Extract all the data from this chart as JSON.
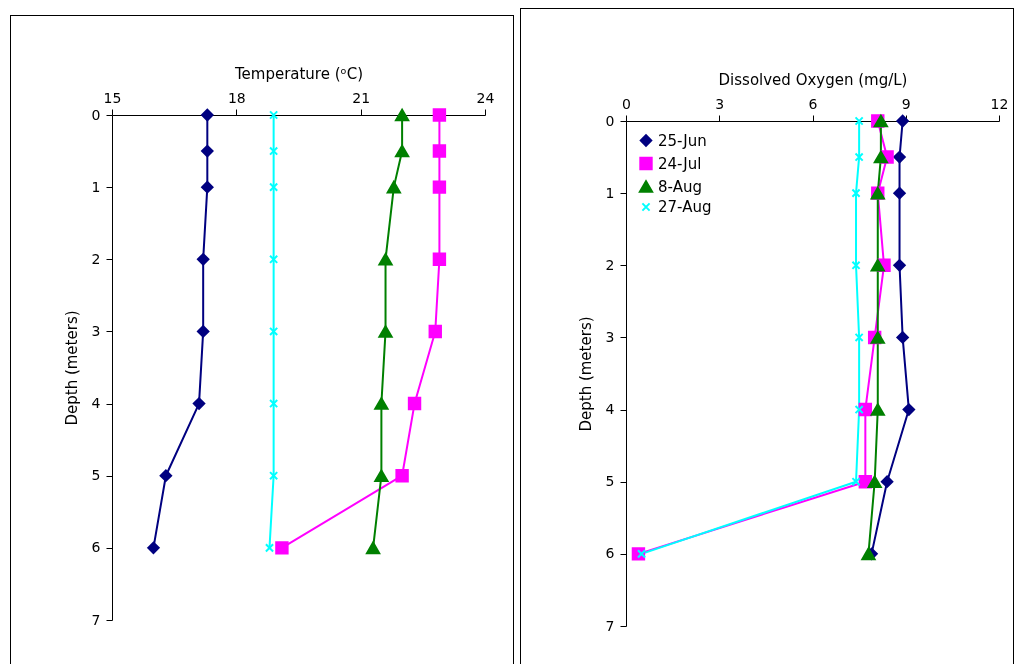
{
  "chart_data": [
    {
      "type": "line",
      "orientation": "horizontal",
      "xlabel": "Temperature (ᵒC)",
      "ylabel": "Depth (meters)",
      "x": [
        0,
        0.5,
        1,
        2,
        3,
        4,
        5,
        6
      ],
      "xlim": [
        15,
        24
      ],
      "xticks": [
        15,
        18,
        21,
        24
      ],
      "ylim": [
        7,
        0
      ],
      "yticks": [
        0,
        1,
        2,
        3,
        4,
        5,
        6,
        7
      ],
      "line_style": "solid",
      "series": [
        {
          "color": "#000080",
          "marker": "diamond",
          "values": [
            17.3,
            17.3,
            17.3,
            17.2,
            17.2,
            17.1,
            16.3,
            16.0
          ]
        },
        {
          "color": "#ff00ff",
          "marker": "square",
          "values": [
            22.9,
            22.9,
            22.9,
            22.9,
            22.8,
            22.3,
            22.0,
            19.1
          ]
        },
        {
          "color": "#008000",
          "marker": "triangle",
          "values": [
            22.0,
            22.0,
            21.8,
            21.6,
            21.6,
            21.5,
            21.5,
            21.3
          ]
        },
        {
          "color": "#00ffff",
          "marker": "cross",
          "values": [
            18.9,
            18.9,
            18.9,
            18.9,
            18.9,
            18.9,
            18.9,
            18.8
          ]
        }
      ]
    },
    {
      "type": "line",
      "orientation": "horizontal",
      "xlabel": "Dissolved Oxygen (mg/L)",
      "ylabel": "Depth (meters)",
      "x": [
        0,
        0.5,
        1,
        2,
        3,
        4,
        5,
        6
      ],
      "xlim": [
        0,
        12
      ],
      "xticks": [
        0,
        3,
        6,
        9,
        12
      ],
      "ylim": [
        7,
        0
      ],
      "yticks": [
        0,
        1,
        2,
        3,
        4,
        5,
        6,
        7
      ],
      "line_style": "solid",
      "legend": "top left",
      "series": [
        {
          "name": "25-Jun",
          "color": "#000080",
          "marker": "diamond",
          "values": [
            8.9,
            8.8,
            8.8,
            8.8,
            8.9,
            9.1,
            8.4,
            7.9
          ]
        },
        {
          "name": "24-Jul",
          "color": "#ff00ff",
          "marker": "square",
          "values": [
            8.1,
            8.4,
            8.1,
            8.3,
            8.0,
            7.7,
            7.7,
            0.4
          ]
        },
        {
          "name": "8-Aug",
          "color": "#008000",
          "marker": "triangle",
          "values": [
            8.2,
            8.2,
            8.1,
            8.1,
            8.1,
            8.1,
            8.0,
            7.8
          ]
        },
        {
          "name": "27-Aug",
          "color": "#00ffff",
          "marker": "cross",
          "values": [
            7.5,
            7.5,
            7.4,
            7.4,
            7.5,
            7.5,
            7.4,
            0.5
          ]
        }
      ]
    }
  ]
}
